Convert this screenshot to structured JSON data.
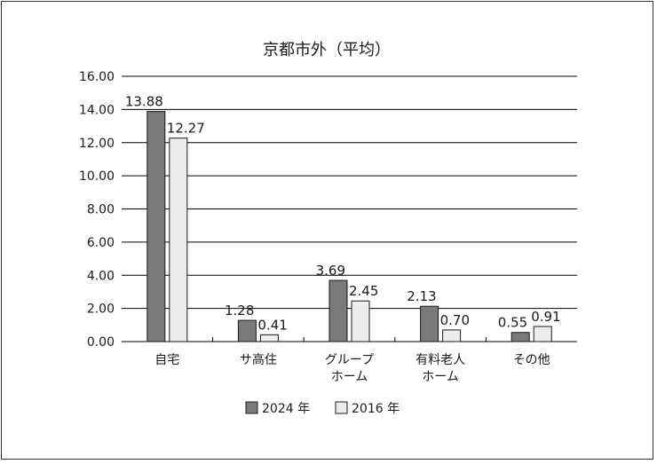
{
  "chart_data": {
    "type": "bar",
    "title": "京都市外（平均）",
    "categories": [
      [
        "自宅"
      ],
      [
        "サ高住"
      ],
      [
        "グループ",
        "ホーム"
      ],
      [
        "有料老人",
        "ホーム"
      ],
      [
        "その他"
      ]
    ],
    "series": [
      {
        "name": "2024 年",
        "color": "#7a7a7a",
        "values": [
          13.88,
          1.28,
          3.69,
          2.13,
          0.55
        ]
      },
      {
        "name": "2016 年",
        "color": "#ededed",
        "values": [
          12.27,
          0.41,
          2.45,
          0.7,
          0.91
        ]
      }
    ],
    "ylim": [
      0,
      16
    ],
    "yticks": [
      "0.00",
      "2.00",
      "4.00",
      "6.00",
      "8.00",
      "10.00",
      "12.00",
      "14.00",
      "16.00"
    ],
    "grid": true,
    "legend": "bottom"
  }
}
